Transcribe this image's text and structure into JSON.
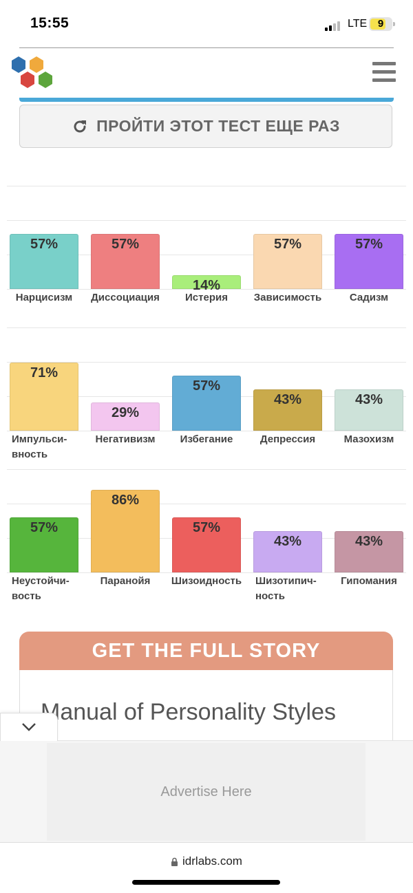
{
  "status_bar": {
    "time": "15:55",
    "network": "LTE",
    "battery": "9"
  },
  "header": {
    "logo_icon": "hexagon-cluster-logo",
    "menu_icon": "hamburger-menu-icon"
  },
  "retake_button": {
    "icon": "refresh-icon",
    "label": "ПРОЙТИ ЭТОТ ТЕСТ ЕЩЕ РАЗ"
  },
  "chart_data": [
    {
      "type": "bar",
      "categories": [
        "Нарцисизм",
        "Диссоциация",
        "Истерия",
        "Зависимость",
        "Садизм"
      ],
      "values": [
        57,
        57,
        14,
        57,
        57
      ],
      "value_labels": [
        "57%",
        "57%",
        "14%",
        "57%",
        "57%"
      ],
      "colors": [
        "#79d0c9",
        "#ee7f80",
        "#a9ee7b",
        "#fad8b1",
        "#a86ef2"
      ],
      "ylim": [
        0,
        100
      ]
    },
    {
      "type": "bar",
      "categories": [
        "Импульси-вность",
        "Негативизм",
        "Избегание",
        "Депрессия",
        "Мазохизм"
      ],
      "label_lines": [
        [
          "Импульси-",
          "вность"
        ],
        [
          "Негативизм"
        ],
        [
          "Избегание"
        ],
        [
          "Депрессия"
        ],
        [
          "Мазохизм"
        ]
      ],
      "values": [
        71,
        29,
        57,
        43,
        43
      ],
      "value_labels": [
        "71%",
        "29%",
        "57%",
        "43%",
        "43%"
      ],
      "colors": [
        "#f8d57d",
        "#f3c6ef",
        "#62acd5",
        "#c9aa4b",
        "#cde2d9"
      ],
      "ylim": [
        0,
        100
      ]
    },
    {
      "type": "bar",
      "categories": [
        "Неустойчи-вость",
        "Паранойя",
        "Шизоидность",
        "Шизотипич-ность",
        "Гипомания"
      ],
      "label_lines": [
        [
          "Неустойчи-",
          "вость"
        ],
        [
          "Паранойя"
        ],
        [
          "Шизоидность"
        ],
        [
          "Шизотипич-",
          "ность"
        ],
        [
          "Гипомания"
        ]
      ],
      "values": [
        57,
        86,
        57,
        43,
        43
      ],
      "value_labels": [
        "57%",
        "86%",
        "57%",
        "43%",
        "43%"
      ],
      "colors": [
        "#56b53c",
        "#f3bd5c",
        "#ec5f5d",
        "#c8aaf1",
        "#c596a4"
      ],
      "ylim": [
        0,
        100
      ]
    }
  ],
  "cta": {
    "header": "GET THE FULL STORY",
    "title": "Manual of Personality Styles"
  },
  "ad": {
    "collapse_icon": "chevron-down-icon",
    "text": "Advertise Here"
  },
  "browser": {
    "lock_icon": "lock-icon",
    "url": "idrlabs.com"
  }
}
